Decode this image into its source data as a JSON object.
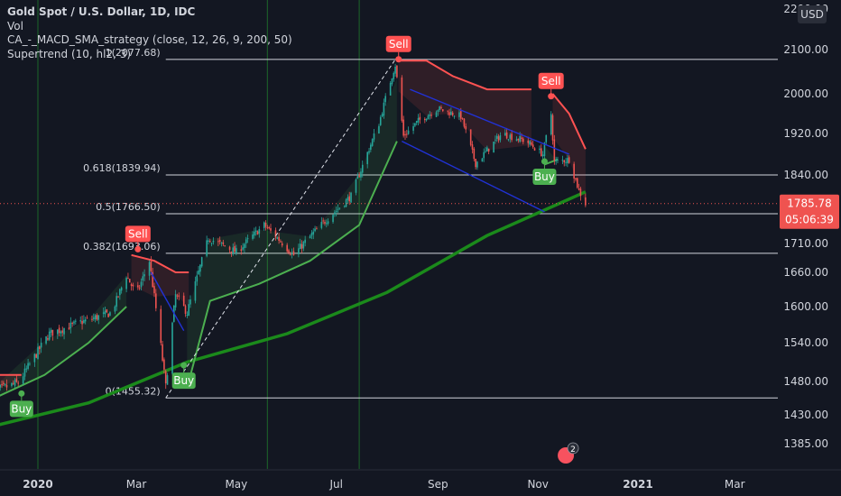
{
  "legend": {
    "title": "Gold Spot / U.S. Dollar, 1D, IDC",
    "line2": "Vol",
    "line3": "CA_-_MACD_SMA_strategy (close, 12, 26, 9, 200, 50)",
    "line4": "Supertrend (10, hl2, 3)"
  },
  "currency_label": "USD",
  "price_badge": {
    "value": "1785.78",
    "countdown": "05:06:39"
  },
  "colors": {
    "background": "#131722",
    "bull": "#26a69a",
    "bear": "#ef5350",
    "supertrend_up": "#4caf50",
    "supertrend_down": "#ff5252",
    "sma200": "#1b8a1b",
    "channel": "#2132d6",
    "fib_line": "#d1d4dc",
    "text": "#d1d4dc"
  },
  "chart_data": {
    "type": "candlestick",
    "title": "Gold Spot / U.S. Dollar, 1D, IDC",
    "ylim": [
      1370,
      2200
    ],
    "y_ticks": [
      "2200.00",
      "2100.00",
      "2000.00",
      "1920.00",
      "1840.00",
      "1710.00",
      "1660.00",
      "1600.00",
      "1540.00",
      "1480.00",
      "1430.00",
      "1385.00"
    ],
    "y_tick_values": [
      2200,
      2100,
      2000,
      1920,
      1840,
      1710,
      1660,
      1600,
      1540,
      1480,
      1430,
      1385
    ],
    "x_ticks": [
      "2020",
      "Mar",
      "May",
      "Jul",
      "Sep",
      "Nov",
      "2021",
      "Mar"
    ],
    "x_tick_dates": [
      "2020-01-01",
      "2020-03-01",
      "2020-05-01",
      "2020-07-01",
      "2020-09-01",
      "2020-11-01",
      "2021-01-01",
      "2021-03-01"
    ],
    "x_range": [
      "2019-12-01",
      "2021-04-15"
    ],
    "last_price": 1785.78,
    "price_path": [
      {
        "date": "2019-12-01",
        "close": 1462
      },
      {
        "date": "2019-12-20",
        "close": 1478
      },
      {
        "date": "2020-01-08",
        "close": 1555
      },
      {
        "date": "2020-01-28",
        "close": 1575
      },
      {
        "date": "2020-02-15",
        "close": 1590
      },
      {
        "date": "2020-02-24",
        "close": 1655
      },
      {
        "date": "2020-03-01",
        "close": 1620
      },
      {
        "date": "2020-03-09",
        "close": 1680
      },
      {
        "date": "2020-03-19",
        "close": 1472
      },
      {
        "date": "2020-03-25",
        "close": 1620
      },
      {
        "date": "2020-04-01",
        "close": 1590
      },
      {
        "date": "2020-04-14",
        "close": 1720
      },
      {
        "date": "2020-05-01",
        "close": 1695
      },
      {
        "date": "2020-05-18",
        "close": 1745
      },
      {
        "date": "2020-06-05",
        "close": 1690
      },
      {
        "date": "2020-06-20",
        "close": 1740
      },
      {
        "date": "2020-07-10",
        "close": 1800
      },
      {
        "date": "2020-07-27",
        "close": 1940
      },
      {
        "date": "2020-08-06",
        "close": 2065
      },
      {
        "date": "2020-08-11",
        "close": 1915
      },
      {
        "date": "2020-08-20",
        "close": 1945
      },
      {
        "date": "2020-09-01",
        "close": 1970
      },
      {
        "date": "2020-09-15",
        "close": 1955
      },
      {
        "date": "2020-09-24",
        "close": 1862
      },
      {
        "date": "2020-10-10",
        "close": 1920
      },
      {
        "date": "2020-10-25",
        "close": 1905
      },
      {
        "date": "2020-11-04",
        "close": 1880
      },
      {
        "date": "2020-11-09",
        "close": 1960
      },
      {
        "date": "2020-11-11",
        "close": 1865
      },
      {
        "date": "2020-11-20",
        "close": 1870
      },
      {
        "date": "2020-11-26",
        "close": 1810
      },
      {
        "date": "2020-11-30",
        "close": 1785.78
      }
    ],
    "sma200": [
      {
        "date": "2019-12-01",
        "value": 1410
      },
      {
        "date": "2020-02-01",
        "value": 1448
      },
      {
        "date": "2020-04-01",
        "value": 1510
      },
      {
        "date": "2020-06-01",
        "value": 1555
      },
      {
        "date": "2020-08-01",
        "value": 1625
      },
      {
        "date": "2020-10-01",
        "value": 1725
      },
      {
        "date": "2020-11-30",
        "value": 1808
      }
    ],
    "supertrend_up_segments": [
      [
        {
          "date": "2019-12-01",
          "value": 1450
        },
        {
          "date": "2020-01-05",
          "value": 1490
        },
        {
          "date": "2020-02-01",
          "value": 1540
        },
        {
          "date": "2020-02-24",
          "value": 1600
        }
      ],
      [
        {
          "date": "2020-04-01",
          "value": 1470
        },
        {
          "date": "2020-04-15",
          "value": 1610
        },
        {
          "date": "2020-05-15",
          "value": 1640
        },
        {
          "date": "2020-06-15",
          "value": 1680
        },
        {
          "date": "2020-07-15",
          "value": 1745
        },
        {
          "date": "2020-08-07",
          "value": 1905
        }
      ],
      [
        {
          "date": "2020-11-05",
          "value": 1860
        },
        {
          "date": "2020-11-13",
          "value": 1870
        }
      ]
    ],
    "supertrend_down_segments": [
      [
        {
          "date": "2019-12-01",
          "value": 1490
        },
        {
          "date": "2019-12-22",
          "value": 1490
        }
      ],
      [
        {
          "date": "2020-02-27",
          "value": 1690
        },
        {
          "date": "2020-03-12",
          "value": 1680
        },
        {
          "date": "2020-03-25",
          "value": 1660
        },
        {
          "date": "2020-04-02",
          "value": 1660
        }
      ],
      [
        {
          "date": "2020-08-08",
          "value": 2075
        },
        {
          "date": "2020-08-25",
          "value": 2075
        },
        {
          "date": "2020-09-10",
          "value": 2040
        },
        {
          "date": "2020-10-01",
          "value": 2010
        },
        {
          "date": "2020-10-28",
          "value": 2010
        }
      ],
      [
        {
          "date": "2020-11-10",
          "value": 2000
        },
        {
          "date": "2020-11-20",
          "value": 1960
        },
        {
          "date": "2020-11-30",
          "value": 1890
        }
      ]
    ],
    "signals": [
      {
        "type": "Buy",
        "date": "2019-12-22",
        "price": 1462
      },
      {
        "type": "Sell",
        "date": "2020-03-02",
        "price": 1700
      },
      {
        "type": "Buy",
        "date": "2020-03-30",
        "price": 1505
      },
      {
        "type": "Sell",
        "date": "2020-08-08",
        "price": 2078
      },
      {
        "type": "Buy",
        "date": "2020-11-05",
        "price": 1866
      },
      {
        "type": "Sell",
        "date": "2020-11-09",
        "price": 1995
      }
    ],
    "fibonacci": [
      {
        "label": "1(2077.68)",
        "value": 2077.68
      },
      {
        "label": "0.618(1839.94)",
        "value": 1839.94
      },
      {
        "label": "0.5(1766.50)",
        "value": 1766.5
      },
      {
        "label": "0.382(1693.06)",
        "value": 1693.06
      },
      {
        "label": "0(1455.32)",
        "value": 1455.32
      }
    ],
    "fib_extent": [
      "2020-03-19",
      "2021-04-15"
    ],
    "trendline": {
      "from": {
        "date": "2020-03-19",
        "value": 1455.32
      },
      "to": {
        "date": "2020-08-06",
        "value": 2077.68
      }
    },
    "channel": {
      "upper": {
        "from": {
          "date": "2020-08-15",
          "value": 2010
        },
        "to": {
          "date": "2020-11-20",
          "value": 1880
        }
      },
      "lower": {
        "from": {
          "date": "2020-08-10",
          "value": 1905
        },
        "to": {
          "date": "2020-11-05",
          "value": 1770
        }
      }
    },
    "march_channel": {
      "from": {
        "date": "2020-03-10",
        "value": 1660
      },
      "to": {
        "date": "2020-03-30",
        "value": 1560
      }
    },
    "vertical_markers": [
      "2020-01-01",
      "2020-05-20",
      "2020-07-15"
    ],
    "grid": false,
    "legend_position": "top-left"
  }
}
